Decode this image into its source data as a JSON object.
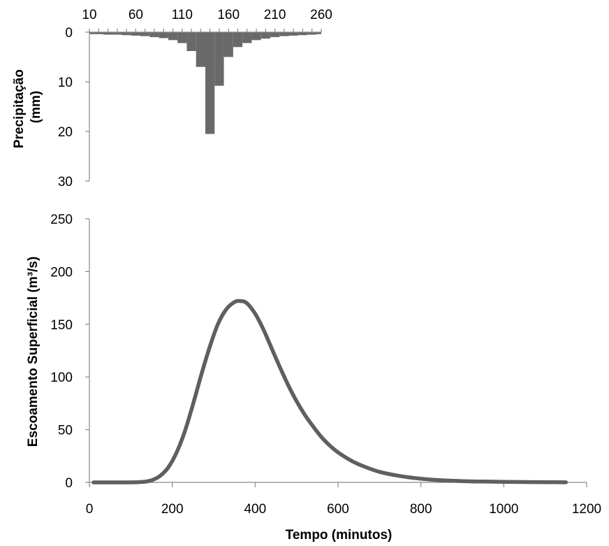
{
  "chart_data": [
    {
      "type": "bar",
      "orientation": "inverted",
      "x_axis_position": "top",
      "x_ticks": [
        10,
        60,
        110,
        160,
        210,
        260
      ],
      "x_range": [
        10,
        260
      ],
      "ylabel": "Precipitação (mm)",
      "ylabel_lines": [
        "Precipitação",
        "(mm)"
      ],
      "ylim": [
        0,
        30
      ],
      "y_ticks": [
        0,
        10,
        20,
        30
      ],
      "bar_width_minutes": 10,
      "intervals": [
        10,
        20,
        30,
        40,
        50,
        60,
        70,
        80,
        90,
        100,
        110,
        120,
        130,
        140,
        150,
        160,
        170,
        180,
        190,
        200,
        210,
        220,
        230,
        240,
        250,
        260
      ],
      "values": [
        0.4,
        0.4,
        0.5,
        0.5,
        0.6,
        0.7,
        0.8,
        1.0,
        1.2,
        1.6,
        2.2,
        3.8,
        7.0,
        20.5,
        10.8,
        5.0,
        3.0,
        2.2,
        1.6,
        1.3,
        1.0,
        0.8,
        0.7,
        0.6,
        0.5,
        0.4
      ],
      "color": "#696969"
    },
    {
      "type": "line",
      "xlabel": "Tempo (minutos)",
      "ylabel": "Escoamento Superficial (m³/s)",
      "xlim": [
        0,
        1200
      ],
      "ylim": [
        0,
        250
      ],
      "x_ticks": [
        0,
        200,
        400,
        600,
        800,
        1000,
        1200
      ],
      "y_ticks": [
        0,
        50,
        100,
        150,
        200,
        250
      ],
      "color": "#5f5f5f",
      "x": [
        10,
        100,
        130,
        150,
        170,
        190,
        210,
        230,
        250,
        270,
        290,
        310,
        330,
        350,
        365,
        380,
        400,
        420,
        440,
        460,
        480,
        500,
        520,
        540,
        560,
        580,
        600,
        630,
        660,
        700,
        750,
        800,
        850,
        900,
        950,
        1000,
        1050,
        1100,
        1150
      ],
      "y": [
        0,
        0,
        0.5,
        2,
        6,
        14,
        28,
        48,
        74,
        102,
        128,
        150,
        164,
        171,
        172,
        170,
        160,
        145,
        127,
        109,
        92,
        77,
        64,
        53,
        43,
        35,
        28.5,
        21,
        15.5,
        10,
        6,
        3.5,
        2,
        1.2,
        0.8,
        0.5,
        0.3,
        0.2,
        0.1
      ]
    }
  ]
}
